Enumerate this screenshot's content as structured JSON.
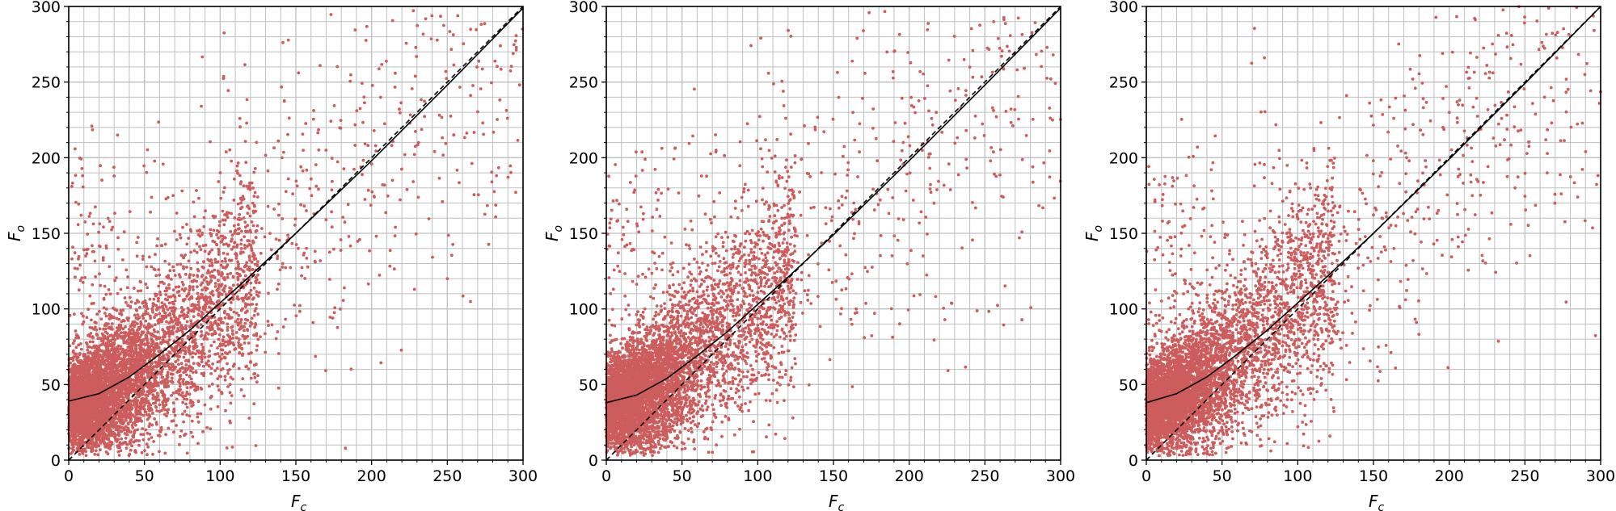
{
  "colors": {
    "points": "#cd5c5c",
    "fit_line": "#000000",
    "identity_line": "#000000",
    "grid": "#bfbfbf",
    "frame": "#000000"
  },
  "chart_data": [
    {
      "type": "scatter",
      "title": "",
      "xlabel": "F",
      "xlabel_sub": "c",
      "ylabel": "F",
      "ylabel_sub": "o",
      "xlim": [
        0,
        300
      ],
      "ylim": [
        0,
        300
      ],
      "xticks": [
        0,
        50,
        100,
        150,
        200,
        250,
        300
      ],
      "yticks": [
        0,
        50,
        100,
        150,
        200,
        250,
        300
      ],
      "xtick_labels": [
        "0",
        "50",
        "100",
        "150",
        "200",
        "250",
        "300"
      ],
      "ytick_labels": [
        "0",
        "50",
        "100",
        "150",
        "200",
        "250",
        "300"
      ],
      "grid": true,
      "minor_grid_step": 10,
      "point_count_approx": 6000,
      "points_note": "dense cloud concentrated below F_c=100 and F_o=100, spreading upward along the diagonal",
      "series": [
        {
          "style": "solid",
          "x": [
            0,
            20,
            40,
            60,
            80,
            100,
            120,
            150,
            200,
            250,
            300
          ],
          "y": [
            39,
            44,
            55,
            70,
            86,
            104,
            122,
            150,
            198,
            248,
            299
          ]
        },
        {
          "style": "dashed",
          "x": [
            0,
            300
          ],
          "y": [
            0,
            300
          ]
        }
      ]
    },
    {
      "type": "scatter",
      "title": "",
      "xlabel": "F",
      "xlabel_sub": "c",
      "ylabel": "F",
      "ylabel_sub": "o",
      "xlim": [
        0,
        300
      ],
      "ylim": [
        0,
        300
      ],
      "xticks": [
        0,
        50,
        100,
        150,
        200,
        250,
        300
      ],
      "yticks": [
        0,
        50,
        100,
        150,
        200,
        250,
        300
      ],
      "xtick_labels": [
        "0",
        "50",
        "100",
        "150",
        "200",
        "250",
        "300"
      ],
      "ytick_labels": [
        "0",
        "50",
        "100",
        "150",
        "200",
        "250",
        "300"
      ],
      "grid": true,
      "minor_grid_step": 10,
      "point_count_approx": 6000,
      "points_note": "dense cloud concentrated below F_c=100 and F_o=100, spreading upward along the diagonal",
      "series": [
        {
          "style": "solid",
          "x": [
            0,
            20,
            40,
            60,
            80,
            100,
            120,
            150,
            200,
            250,
            300
          ],
          "y": [
            38,
            43,
            54,
            69,
            85,
            103,
            121,
            149,
            198,
            248,
            299
          ]
        },
        {
          "style": "dashed",
          "x": [
            0,
            300
          ],
          "y": [
            0,
            300
          ]
        }
      ]
    },
    {
      "type": "scatter",
      "title": "",
      "xlabel": "F",
      "xlabel_sub": "c",
      "ylabel": "F",
      "ylabel_sub": "o",
      "xlim": [
        0,
        300
      ],
      "ylim": [
        0,
        300
      ],
      "xticks": [
        0,
        50,
        100,
        150,
        200,
        250,
        300
      ],
      "yticks": [
        0,
        50,
        100,
        150,
        200,
        250,
        300
      ],
      "xtick_labels": [
        "0",
        "50",
        "100",
        "150",
        "200",
        "250",
        "300"
      ],
      "ytick_labels": [
        "0",
        "50",
        "100",
        "150",
        "200",
        "250",
        "300"
      ],
      "grid": true,
      "minor_grid_step": 10,
      "point_count_approx": 6000,
      "points_note": "dense cloud concentrated below F_c=100 and F_o=100, spreading upward along the diagonal",
      "series": [
        {
          "style": "solid",
          "x": [
            0,
            20,
            40,
            60,
            80,
            100,
            120,
            150,
            200,
            250,
            300
          ],
          "y": [
            38,
            44,
            55,
            70,
            86,
            104,
            122,
            150,
            199,
            249,
            300
          ]
        },
        {
          "style": "dashed",
          "x": [
            0,
            300
          ],
          "y": [
            0,
            300
          ]
        }
      ]
    }
  ]
}
